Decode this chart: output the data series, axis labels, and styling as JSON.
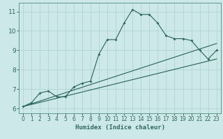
{
  "title": "",
  "xlabel": "Humidex (Indice chaleur)",
  "background_color": "#cde8e8",
  "grid_color": "#b0d4d4",
  "line_color": "#2d6b5e",
  "spine_color": "#5a9a8a",
  "tick_color": "#2d6b5e",
  "xlim": [
    -0.5,
    23.5
  ],
  "ylim": [
    5.75,
    11.45
  ],
  "xticks": [
    0,
    1,
    2,
    3,
    4,
    5,
    6,
    7,
    8,
    9,
    10,
    11,
    12,
    13,
    14,
    15,
    16,
    17,
    18,
    19,
    20,
    21,
    22,
    23
  ],
  "yticks": [
    6,
    7,
    8,
    9,
    10,
    11
  ],
  "main_x": [
    0,
    1,
    2,
    3,
    4,
    5,
    6,
    7,
    8,
    9,
    10,
    11,
    12,
    13,
    14,
    15,
    16,
    17,
    18,
    19,
    20,
    21,
    22,
    23
  ],
  "main_y": [
    6.1,
    6.3,
    6.8,
    6.9,
    6.6,
    6.6,
    7.1,
    7.3,
    7.4,
    8.8,
    9.55,
    9.55,
    10.4,
    11.1,
    10.85,
    10.85,
    10.4,
    9.75,
    9.6,
    9.6,
    9.5,
    9.0,
    8.55,
    9.0
  ],
  "line1_x": [
    0,
    23
  ],
  "line1_y": [
    6.1,
    9.35
  ],
  "line2_x": [
    0,
    23
  ],
  "line2_y": [
    6.1,
    8.55
  ]
}
